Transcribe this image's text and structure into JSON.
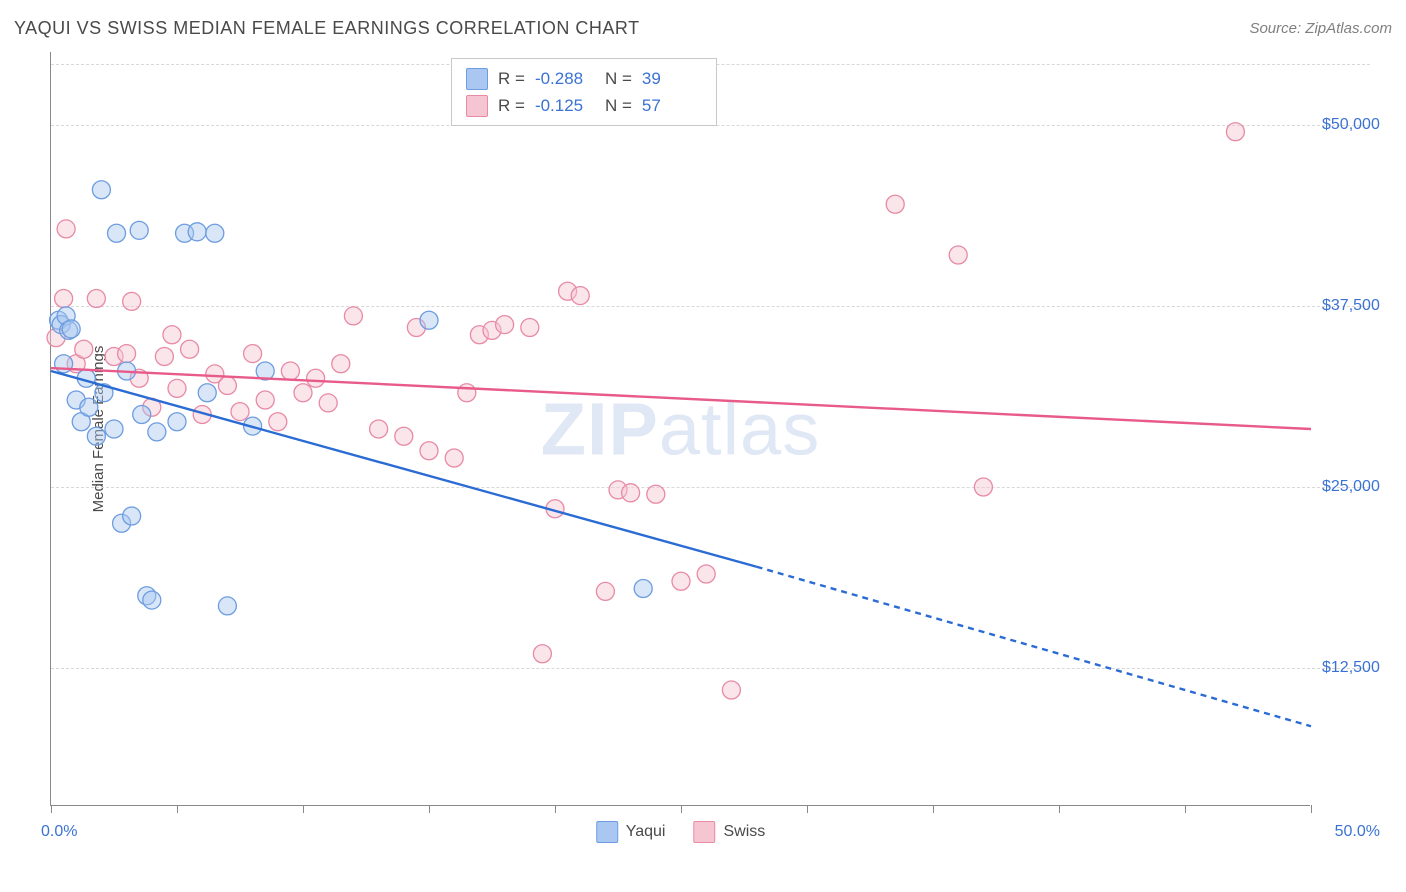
{
  "title": "YAQUI VS SWISS MEDIAN FEMALE EARNINGS CORRELATION CHART",
  "source": "Source: ZipAtlas.com",
  "y_axis_title": "Median Female Earnings",
  "x_min_label": "0.0%",
  "x_max_label": "50.0%",
  "watermark_bold": "ZIP",
  "watermark_rest": "atlas",
  "colors": {
    "series1_fill": "#a9c7f0",
    "series1_stroke": "#6d9de0",
    "series2_fill": "#f5c5d2",
    "series2_stroke": "#e88aa5",
    "trend1": "#2b6bd4",
    "trend2": "#e85a8a",
    "axis_text": "#3a72d4",
    "grid": "#d8d8d8",
    "title_color": "#4a4a4a"
  },
  "chart": {
    "type": "scatter",
    "xlim": [
      0,
      50
    ],
    "ylim": [
      3000,
      55000
    ],
    "x_ticks": [
      0,
      5,
      10,
      15,
      20,
      25,
      30,
      35,
      40,
      45,
      50
    ],
    "y_ticks": [
      12500,
      25000,
      37500,
      50000
    ],
    "y_tick_labels": [
      "$12,500",
      "$25,000",
      "$37,500",
      "$50,000"
    ],
    "marker_radius": 9,
    "marker_fill_opacity": 0.45,
    "marker_stroke_width": 1.3,
    "trend_line_width": 2.4,
    "series": [
      {
        "name": "Yaqui",
        "R": "-0.288",
        "N": "39",
        "points": [
          [
            0.3,
            36500
          ],
          [
            0.4,
            36200
          ],
          [
            0.5,
            33500
          ],
          [
            0.6,
            36800
          ],
          [
            0.7,
            35800
          ],
          [
            0.8,
            35900
          ],
          [
            1.0,
            31000
          ],
          [
            1.2,
            29500
          ],
          [
            1.4,
            32500
          ],
          [
            1.5,
            30500
          ],
          [
            1.8,
            28500
          ],
          [
            2.0,
            45500
          ],
          [
            2.1,
            31500
          ],
          [
            2.5,
            29000
          ],
          [
            2.6,
            42500
          ],
          [
            2.8,
            22500
          ],
          [
            3.0,
            33000
          ],
          [
            3.2,
            23000
          ],
          [
            3.5,
            42700
          ],
          [
            3.6,
            30000
          ],
          [
            3.8,
            17500
          ],
          [
            4.0,
            17200
          ],
          [
            4.2,
            28800
          ],
          [
            5.0,
            29500
          ],
          [
            5.3,
            42500
          ],
          [
            5.8,
            42600
          ],
          [
            6.2,
            31500
          ],
          [
            6.5,
            42500
          ],
          [
            7.0,
            16800
          ],
          [
            8.0,
            29200
          ],
          [
            8.5,
            33000
          ],
          [
            15.0,
            36500
          ],
          [
            23.5,
            18000
          ]
        ],
        "trend": {
          "x1": 0,
          "y1": 33000,
          "x2": 28,
          "y2": 19500,
          "x2_ext": 50,
          "y2_ext": 8500
        }
      },
      {
        "name": "Swiss",
        "R": "-0.125",
        "N": "57",
        "points": [
          [
            0.2,
            35300
          ],
          [
            0.5,
            38000
          ],
          [
            0.6,
            42800
          ],
          [
            1.0,
            33500
          ],
          [
            1.3,
            34500
          ],
          [
            1.8,
            38000
          ],
          [
            2.5,
            34000
          ],
          [
            3.0,
            34200
          ],
          [
            3.2,
            37800
          ],
          [
            3.5,
            32500
          ],
          [
            4.0,
            30500
          ],
          [
            4.5,
            34000
          ],
          [
            4.8,
            35500
          ],
          [
            5.0,
            31800
          ],
          [
            5.5,
            34500
          ],
          [
            6.0,
            30000
          ],
          [
            6.5,
            32800
          ],
          [
            7.0,
            32000
          ],
          [
            7.5,
            30200
          ],
          [
            8.0,
            34200
          ],
          [
            8.5,
            31000
          ],
          [
            9.0,
            29500
          ],
          [
            9.5,
            33000
          ],
          [
            10.0,
            31500
          ],
          [
            10.5,
            32500
          ],
          [
            11.0,
            30800
          ],
          [
            11.5,
            33500
          ],
          [
            12.0,
            36800
          ],
          [
            13.0,
            29000
          ],
          [
            14.0,
            28500
          ],
          [
            14.5,
            36000
          ],
          [
            15.0,
            27500
          ],
          [
            16.0,
            27000
          ],
          [
            16.5,
            31500
          ],
          [
            17.0,
            35500
          ],
          [
            17.5,
            35800
          ],
          [
            18.0,
            36200
          ],
          [
            19.0,
            36000
          ],
          [
            19.5,
            13500
          ],
          [
            20.0,
            23500
          ],
          [
            20.5,
            38500
          ],
          [
            21.0,
            38200
          ],
          [
            22.0,
            17800
          ],
          [
            22.5,
            24800
          ],
          [
            23.0,
            24600
          ],
          [
            24.0,
            24500
          ],
          [
            25.0,
            18500
          ],
          [
            26.0,
            19000
          ],
          [
            27.0,
            11000
          ],
          [
            33.5,
            44500
          ],
          [
            36.0,
            41000
          ],
          [
            37.0,
            25000
          ],
          [
            47.0,
            49500
          ]
        ],
        "trend": {
          "x1": 0,
          "y1": 33200,
          "x2": 50,
          "y2": 29000
        }
      }
    ]
  },
  "legend": {
    "series1_label": "Yaqui",
    "series2_label": "Swiss"
  }
}
